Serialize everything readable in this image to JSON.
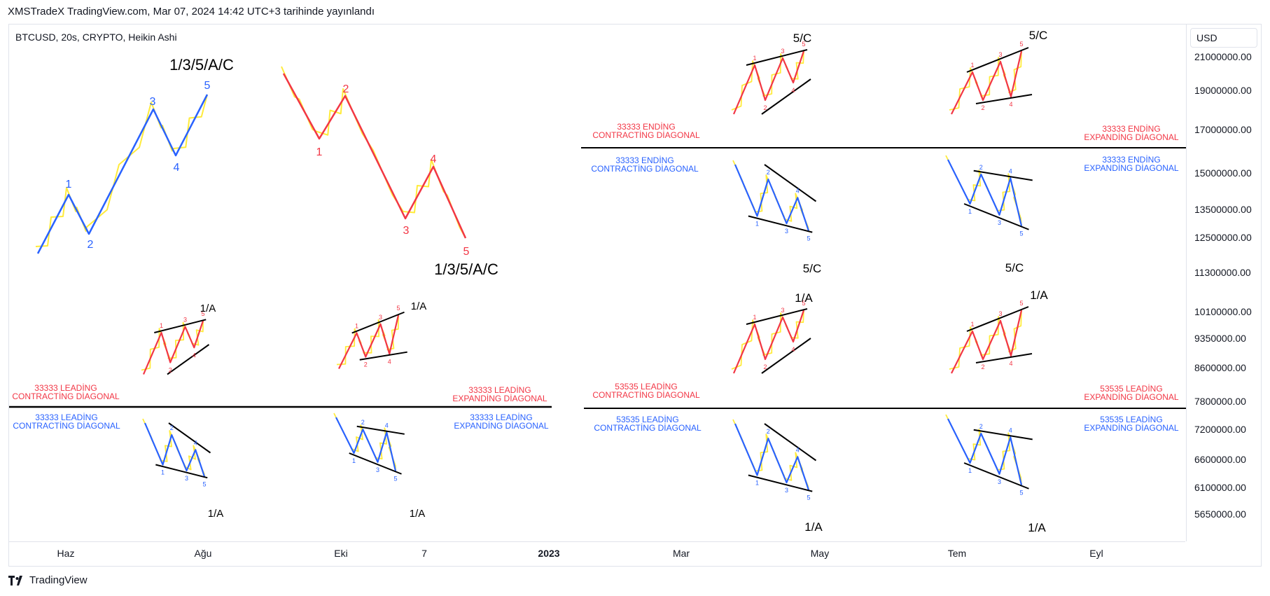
{
  "header": {
    "title": "XMSTradeX TradingView.com, Mar 07, 2024 14:42 UTC+3 tarihinde yayınlandı"
  },
  "chart": {
    "symbol": "BTCUSD, 20s, CRYPTO, Heikin Ashi",
    "currency": "USD",
    "price_labels": [
      "21000000.00",
      "19000000.00",
      "17000000.00",
      "15000000.00",
      "13500000.00",
      "12500000.00",
      "11300000.00",
      "10100000.00",
      "9350000.00",
      "8600000.00",
      "7800000.00",
      "7200000.00",
      "6600000.00",
      "6100000.00",
      "5650000.00"
    ],
    "time_labels": [
      "Haz",
      "Ağu",
      "Eki",
      "7",
      "2023",
      "Mar",
      "May",
      "Tem",
      "Eyl"
    ]
  },
  "colors": {
    "blue": "#2962ff",
    "red": "#f23645",
    "yellow": "#ffeb3b",
    "black": "#000000"
  },
  "big_labels": [
    "1/3/5/A/C",
    "1/3/5/A/C"
  ],
  "wave_numbers_blue": [
    "1",
    "2",
    "3",
    "4",
    "5"
  ],
  "wave_numbers_red": [
    "1",
    "2",
    "3",
    "4",
    "5"
  ],
  "pattern_labels": {
    "ending_contracting_red": [
      "33333  ENDİNG",
      "CONTRACTİNG DİAGONAL"
    ],
    "ending_expanding_red": [
      "33333  ENDİNG",
      "EXPANDİNG DİAGONAL"
    ],
    "ending_contracting_blue": [
      "33333  ENDİNG",
      "CONTRACTİNG DİAGONAL"
    ],
    "ending_expanding_blue": [
      "33333  ENDİNG",
      "EXPANDİNG DİAGONAL"
    ],
    "leading_contracting_red_33333": [
      "33333  LEADİNG",
      "CONTRACTİNG DİAGONAL"
    ],
    "leading_expanding_red_33333": [
      "33333  LEADİNG",
      "EXPANDİNG DİAGONAL"
    ],
    "leading_contracting_blue_33333": [
      "33333  LEADİNG",
      "CONTRACTİNG DİAGONAL"
    ],
    "leading_expanding_blue_33333": [
      "33333  LEADİNG",
      "EXPANDİNG DİAGONAL"
    ],
    "leading_contracting_red_53535": [
      "53535  LEADİNG",
      "CONTRACTİNG DİAGONAL"
    ],
    "leading_expanding_red_53535": [
      "53535  LEADİNG",
      "EXPANDİNG DİAGONAL"
    ],
    "leading_contracting_blue_53535": [
      "53535  LEADİNG",
      "CONTRACTİNG DİAGONAL"
    ],
    "leading_expanding_blue_53535": [
      "53535  LEADİNG",
      "EXPANDİNG DİAGONAL"
    ]
  },
  "corner_labels": {
    "ending": "5/C",
    "leading": "1/A"
  },
  "footer": {
    "brand": "TradingView"
  }
}
